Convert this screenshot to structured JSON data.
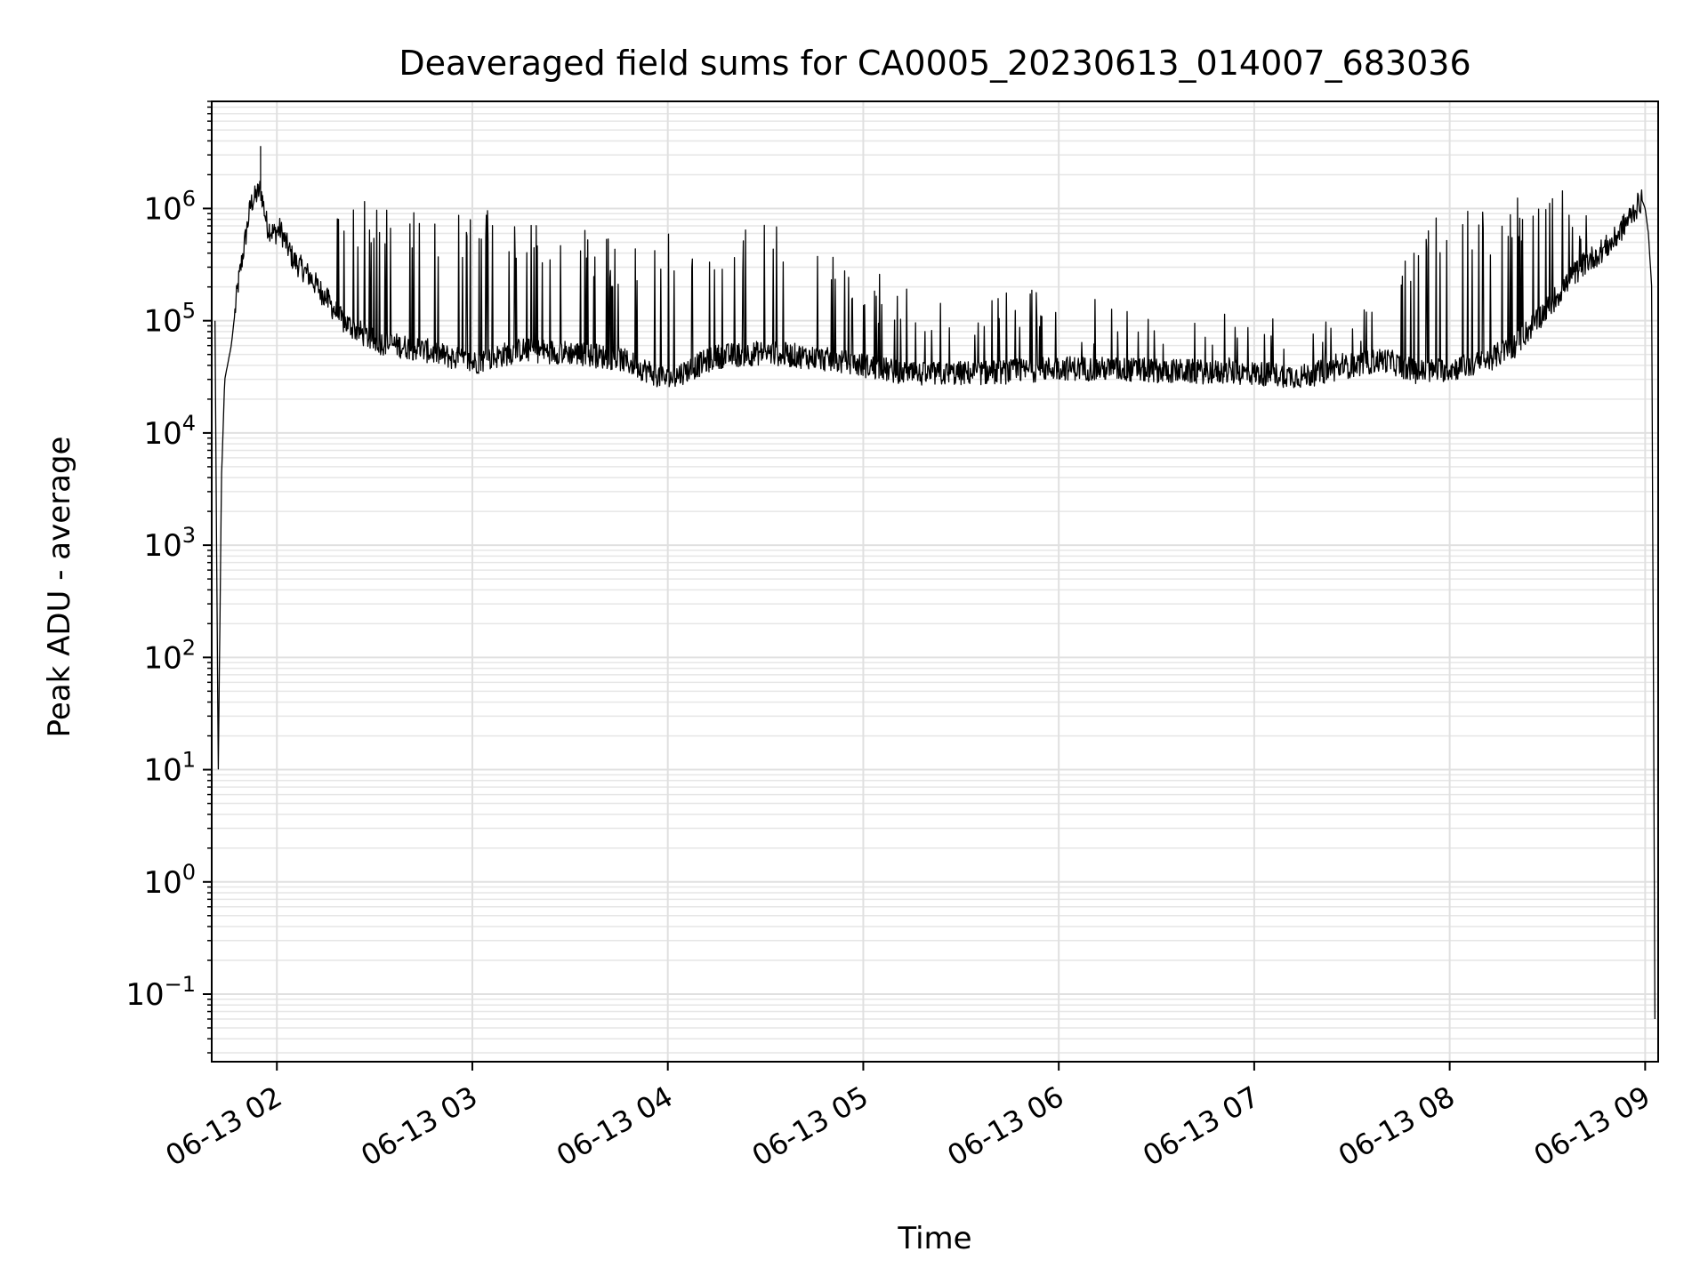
{
  "chart_data": {
    "type": "line",
    "title": "Deaveraged field sums for CA0005_20230613_014007_683036",
    "xlabel": "Time",
    "ylabel": "Peak ADU - average",
    "yscale": "log",
    "grid": true,
    "legend": "none",
    "xlim": [
      "2023-06-13 01:40",
      "2023-06-13 09:04"
    ],
    "ylim": [
      0.025,
      9000000
    ],
    "x_ticks": [
      "06-13 02",
      "06-13 03",
      "06-13 04",
      "06-13 05",
      "06-13 06",
      "06-13 07",
      "06-13 08",
      "06-13 09"
    ],
    "y_ticks": [
      {
        "base": "10",
        "exp": "−1",
        "value": 0.1
      },
      {
        "base": "10",
        "exp": "0",
        "value": 1
      },
      {
        "base": "10",
        "exp": "1",
        "value": 10
      },
      {
        "base": "10",
        "exp": "2",
        "value": 100
      },
      {
        "base": "10",
        "exp": "3",
        "value": 1000
      },
      {
        "base": "10",
        "exp": "4",
        "value": 10000
      },
      {
        "base": "10",
        "exp": "5",
        "value": 100000
      },
      {
        "base": "10",
        "exp": "6",
        "value": 1000000
      }
    ],
    "series": [
      {
        "color": "#000000",
        "x": [
          "01:41",
          "01:42",
          "01:43",
          "01:44",
          "01:46",
          "01:48",
          "01:52",
          "01:55",
          "01:57",
          "01:59",
          "02:01",
          "02:05",
          "02:10",
          "02:15",
          "02:20",
          "02:30",
          "02:45",
          "03:00",
          "03:15",
          "03:30",
          "03:45",
          "04:00",
          "04:15",
          "04:30",
          "04:45",
          "05:00",
          "05:15",
          "05:30",
          "05:45",
          "06:00",
          "06:15",
          "06:30",
          "06:45",
          "07:00",
          "07:15",
          "07:30",
          "07:40",
          "07:50",
          "08:00",
          "08:10",
          "08:20",
          "08:30",
          "08:40",
          "08:50",
          "08:56",
          "08:59",
          "09:00",
          "09:01",
          "09:02",
          "09:03"
        ],
        "y": [
          100000,
          9,
          4000,
          30000,
          60000,
          200000,
          1100000,
          1500000,
          700000,
          600000,
          650000,
          350000,
          250000,
          160000,
          100000,
          65000,
          55000,
          42000,
          55000,
          52000,
          46000,
          30000,
          48000,
          52000,
          47000,
          40000,
          33000,
          34000,
          35000,
          38000,
          37000,
          36000,
          35000,
          34000,
          32000,
          40000,
          45000,
          35000,
          37000,
          42000,
          60000,
          130000,
          300000,
          500000,
          900000,
          1200000,
          1000000,
          600000,
          200000,
          0.06
        ]
      }
    ],
    "spike_envelope": {
      "x": [
        "02:14",
        "02:30",
        "02:45",
        "03:00",
        "03:15",
        "03:30",
        "03:45",
        "04:00",
        "04:15",
        "04:30",
        "04:45",
        "05:00",
        "05:15",
        "05:30",
        "05:45",
        "06:00",
        "06:15",
        "06:30",
        "06:45",
        "07:00",
        "07:15",
        "07:30",
        "07:45",
        "08:00",
        "08:15",
        "08:30",
        "08:45"
      ],
      "y": [
        1200000,
        1300000,
        1000000,
        1000000,
        900000,
        800000,
        500000,
        600000,
        700000,
        800000,
        450000,
        300000,
        200000,
        200000,
        200000,
        180000,
        150000,
        150000,
        120000,
        120000,
        100000,
        100000,
        500000,
        1000000,
        1100000,
        1500000,
        1500000
      ]
    }
  }
}
